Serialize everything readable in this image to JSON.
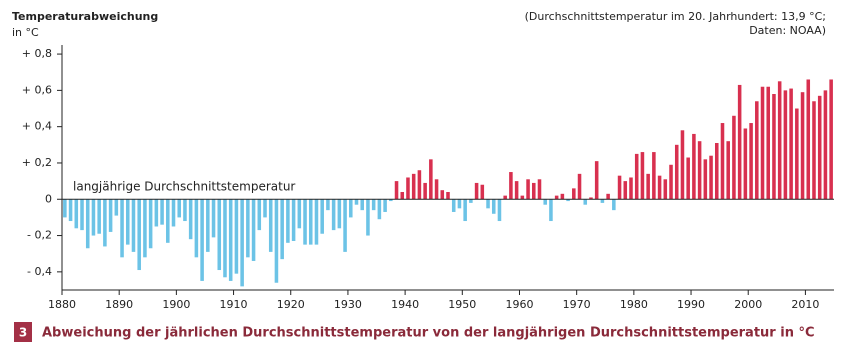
{
  "chart_data": {
    "type": "bar",
    "y_label": "Temperaturabweichung",
    "y_unit": "in °C",
    "note": [
      "(Durchschnittstemperatur im 20. Jahrhundert: 13,9 °C;",
      "Daten: NOAA)"
    ],
    "annotation": "langjährige Durchschnittstemperatur",
    "figure_number": "3",
    "caption": "Abweichung der jährlichen Durchschnittstemperatur von der langjährigen Durchschnittstemperatur in °C",
    "x": [
      1880,
      1881,
      1882,
      1883,
      1884,
      1885,
      1886,
      1887,
      1888,
      1889,
      1890,
      1891,
      1892,
      1893,
      1894,
      1895,
      1896,
      1897,
      1898,
      1899,
      1900,
      1901,
      1902,
      1903,
      1904,
      1905,
      1906,
      1907,
      1908,
      1909,
      1910,
      1911,
      1912,
      1913,
      1914,
      1915,
      1916,
      1917,
      1918,
      1919,
      1920,
      1921,
      1922,
      1923,
      1924,
      1925,
      1926,
      1927,
      1928,
      1929,
      1930,
      1931,
      1932,
      1933,
      1934,
      1935,
      1936,
      1937,
      1938,
      1939,
      1940,
      1941,
      1942,
      1943,
      1944,
      1945,
      1946,
      1947,
      1948,
      1949,
      1950,
      1951,
      1952,
      1953,
      1954,
      1955,
      1956,
      1957,
      1958,
      1959,
      1960,
      1961,
      1962,
      1963,
      1964,
      1965,
      1966,
      1967,
      1968,
      1969,
      1970,
      1971,
      1972,
      1973,
      1974,
      1975,
      1976,
      1977,
      1978,
      1979,
      1980,
      1981,
      1982,
      1983,
      1984,
      1985,
      1986,
      1987,
      1988,
      1989,
      1990,
      1991,
      1992,
      1993,
      1994,
      1995,
      1996,
      1997,
      1998,
      1999,
      2000,
      2001,
      2002,
      2003,
      2004,
      2005,
      2006,
      2007,
      2008,
      2009,
      2010,
      2011,
      2012,
      2013,
      2014
    ],
    "values": [
      -0.1,
      -0.12,
      -0.16,
      -0.17,
      -0.27,
      -0.2,
      -0.19,
      -0.26,
      -0.18,
      -0.09,
      -0.32,
      -0.25,
      -0.29,
      -0.39,
      -0.32,
      -0.27,
      -0.15,
      -0.14,
      -0.24,
      -0.15,
      -0.1,
      -0.12,
      -0.22,
      -0.32,
      -0.45,
      -0.29,
      -0.21,
      -0.39,
      -0.43,
      -0.45,
      -0.41,
      -0.48,
      -0.32,
      -0.34,
      -0.17,
      -0.1,
      -0.29,
      -0.46,
      -0.33,
      -0.24,
      -0.23,
      -0.16,
      -0.25,
      -0.25,
      -0.25,
      -0.19,
      -0.06,
      -0.17,
      -0.16,
      -0.29,
      -0.1,
      -0.03,
      -0.06,
      -0.2,
      -0.06,
      -0.11,
      -0.07,
      -0.01,
      0.1,
      0.04,
      0.12,
      0.14,
      0.16,
      0.09,
      0.22,
      0.11,
      0.05,
      0.04,
      -0.07,
      -0.05,
      -0.12,
      -0.02,
      0.09,
      0.08,
      -0.05,
      -0.08,
      -0.12,
      0.02,
      0.15,
      0.1,
      0.02,
      0.11,
      0.09,
      0.11,
      -0.03,
      -0.12,
      0.02,
      0.03,
      -0.01,
      0.06,
      0.14,
      -0.03,
      0.01,
      0.21,
      -0.02,
      0.03,
      -0.06,
      0.13,
      0.1,
      0.12,
      0.25,
      0.26,
      0.14,
      0.26,
      0.13,
      0.11,
      0.19,
      0.3,
      0.38,
      0.23,
      0.36,
      0.32,
      0.22,
      0.24,
      0.31,
      0.42,
      0.32,
      0.46,
      0.63,
      0.39,
      0.42,
      0.54,
      0.62,
      0.62,
      0.58,
      0.65,
      0.6,
      0.61,
      0.5,
      0.59,
      0.66,
      0.54,
      0.57,
      0.6,
      0.66
    ],
    "color_positive": "#d8304f",
    "color_negative": "#6cc3e6",
    "xlim": [
      1880,
      2015
    ],
    "xticks": [
      1880,
      1890,
      1900,
      1910,
      1920,
      1930,
      1940,
      1950,
      1960,
      1970,
      1980,
      1990,
      2000,
      2010
    ],
    "ylim": [
      -0.5,
      0.85
    ],
    "yticks": [
      {
        "value": 0.8,
        "label": "+ 0,8"
      },
      {
        "value": 0.6,
        "label": "+ 0,6"
      },
      {
        "value": 0.4,
        "label": "+ 0,4"
      },
      {
        "value": 0.2,
        "label": "+ 0,2"
      },
      0,
      {
        "value": -0.2,
        "label": "- 0,2"
      },
      {
        "value": -0.4,
        "label": "- 0,4"
      }
    ],
    "grid": false
  }
}
